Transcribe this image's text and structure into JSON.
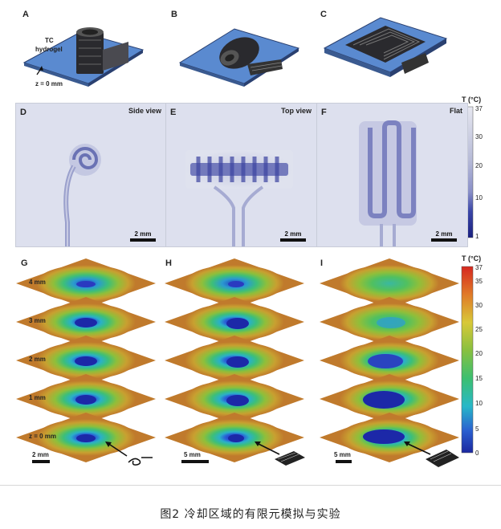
{
  "panels": {
    "A": "A",
    "B": "B",
    "C": "C",
    "D": "D",
    "E": "E",
    "F": "F",
    "G": "G",
    "H": "H",
    "I": "I"
  },
  "panel_a": {
    "tc_label": "TC",
    "hydrogel_label": "hydrogel",
    "z_label": "z = 0 mm"
  },
  "photos": {
    "d_view": "Side view",
    "e_view": "Top view",
    "f_view": "Flat",
    "scale": "2 mm"
  },
  "top_colorbar": {
    "title": "T (°C)",
    "ticks": [
      "37",
      "30",
      "20",
      "10",
      "1"
    ]
  },
  "bottom_colorbar": {
    "title": "T (°C)",
    "ticks": [
      "37",
      "35",
      "30",
      "25",
      "20",
      "15",
      "10",
      "5",
      "0"
    ]
  },
  "layers": [
    "4 mm",
    "3 mm",
    "2 mm",
    "1 mm",
    "z = 0 mm"
  ],
  "sim_scales": {
    "g": "2 mm",
    "h": "5 mm",
    "i": "5 mm"
  },
  "caption": "图2 冷却区域的有限元模拟与实验"
}
